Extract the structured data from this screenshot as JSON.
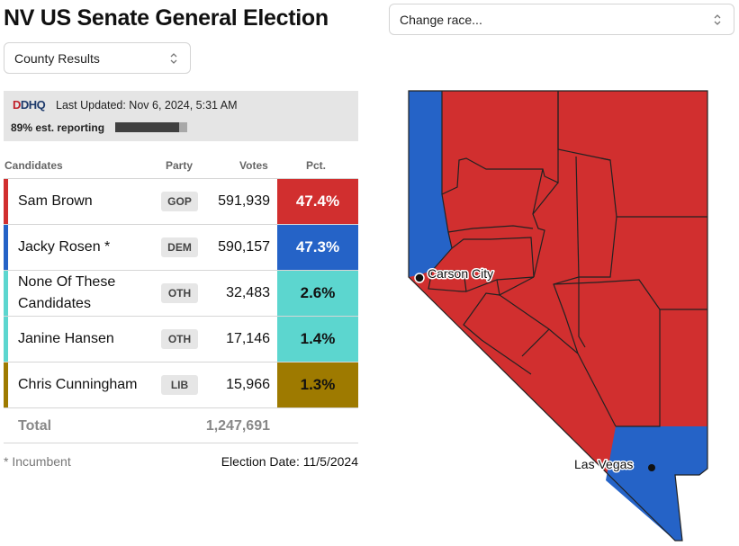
{
  "header": {
    "title": "NV US Senate General Election"
  },
  "race_select": {
    "placeholder": "Change race..."
  },
  "view_select": {
    "value": "County Results"
  },
  "status": {
    "logo_text": "DDHQ",
    "last_updated": "Last Updated: Nov 6, 2024, 5:31 AM",
    "reporting_text": "89% est. reporting",
    "reporting_fraction": 0.89
  },
  "table": {
    "headers": {
      "candidates": "Candidates",
      "party": "Party",
      "votes": "Votes",
      "pct": "Pct."
    },
    "rows": [
      {
        "name": "Sam Brown",
        "party": "GOP",
        "votes": "591,939",
        "pct": "47.4%",
        "color": "#d12f2f",
        "pct_text_color": "#ffffff"
      },
      {
        "name": "Jacky Rosen *",
        "party": "DEM",
        "votes": "590,157",
        "pct": "47.3%",
        "color": "#2563c7",
        "pct_text_color": "#ffffff"
      },
      {
        "name": "None Of These Candidates",
        "party": "OTH",
        "votes": "32,483",
        "pct": "2.6%",
        "color": "#5cd6cf",
        "pct_text_color": "#111111"
      },
      {
        "name": "Janine Hansen",
        "party": "OTH",
        "votes": "17,146",
        "pct": "1.4%",
        "color": "#5cd6cf",
        "pct_text_color": "#111111"
      },
      {
        "name": "Chris Cunningham",
        "party": "LIB",
        "votes": "15,966",
        "pct": "1.3%",
        "color": "#9e7a00",
        "pct_text_color": "#111111"
      }
    ],
    "total_label": "Total",
    "total_votes": "1,247,691"
  },
  "footer": {
    "incumbent_note": "* Incumbent",
    "election_date": "Election Date: 11/5/2024"
  },
  "map": {
    "colors": {
      "gop": "#d12f2f",
      "dem": "#2563c7",
      "border": "#222222"
    },
    "cities": [
      "Carson City",
      "Las Vegas"
    ]
  }
}
